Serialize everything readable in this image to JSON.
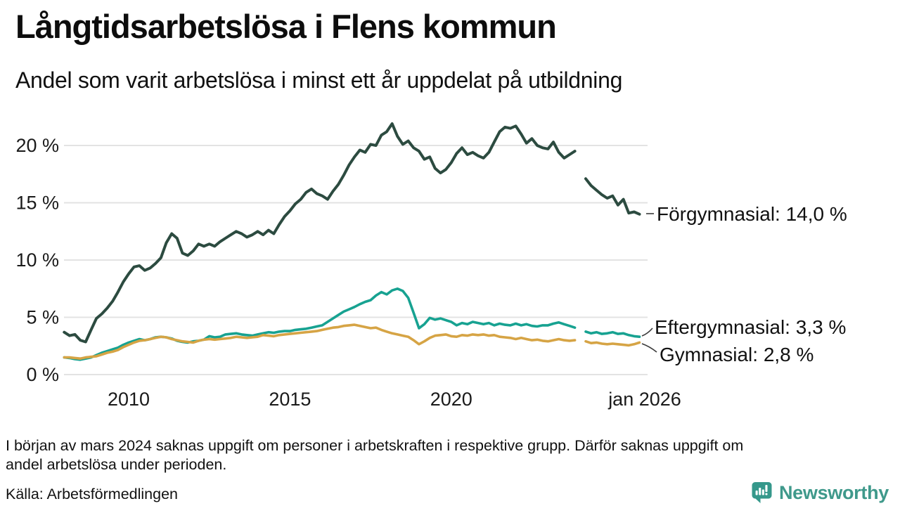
{
  "header": {
    "title": "Långtidsarbetslösa i Flens kommun",
    "subtitle": "Andel som varit arbetslösa i minst ett år uppdelat på utbildning"
  },
  "chart_data": {
    "type": "line",
    "title": "Långtidsarbetslösa i Flens kommun",
    "subtitle": "Andel som varit arbetslösa i minst ett år uppdelat på utbildning",
    "unit": "%",
    "grid": "horizontal-only",
    "legend_position": "right-end-labels",
    "x_axis": {
      "range_years": [
        2008.0,
        2026.2
      ],
      "ticks": [
        {
          "year": 2010,
          "label": "2010"
        },
        {
          "year": 2015,
          "label": "2015"
        },
        {
          "year": 2020,
          "label": "2020"
        },
        {
          "year": 2026,
          "label": "jan 2026"
        }
      ]
    },
    "y_axis": {
      "range": [
        0,
        22.5
      ],
      "ticks": [
        {
          "value": 0,
          "label": "0 %"
        },
        {
          "value": 5,
          "label": "5 %"
        },
        {
          "value": 10,
          "label": "10 %"
        },
        {
          "value": 15,
          "label": "15 %"
        },
        {
          "value": 20,
          "label": "20 %"
        }
      ]
    },
    "gap_period": "ca nov 2023 – feb 2024 (data saknas)",
    "series": [
      {
        "name": "Förgymnasial",
        "color": "#2c4b40",
        "end_value": 14.0,
        "end_label": "Förgymnasial: 14,0 %",
        "segments": [
          {
            "start": 2008.0,
            "step": 0.16667,
            "values": [
              3.7,
              3.4,
              3.5,
              3.0,
              2.85,
              3.9,
              4.9,
              5.3,
              5.8,
              6.4,
              7.2,
              8.1,
              8.8,
              9.4,
              9.5,
              9.1,
              9.3,
              9.7,
              10.2,
              11.5,
              12.3,
              11.9,
              10.6,
              10.4,
              10.8,
              11.4,
              11.2,
              11.4,
              11.2,
              11.6,
              11.9,
              12.2,
              12.5,
              12.3,
              12.0,
              12.2,
              12.5,
              12.2,
              12.6,
              12.3,
              13.1,
              13.8,
              14.3,
              14.9,
              15.3,
              15.9,
              16.2,
              15.8,
              15.6,
              15.3,
              16.0,
              16.6,
              17.4,
              18.3,
              19.0,
              19.6,
              19.4,
              20.1,
              20.0,
              20.9,
              21.2,
              21.9,
              20.8,
              20.1,
              20.4,
              19.8,
              19.5,
              18.8,
              19.0,
              18.0,
              17.6,
              17.9,
              18.5,
              19.3,
              19.8,
              19.2,
              19.4,
              19.1,
              18.9,
              19.4,
              20.3,
              21.2,
              21.6,
              21.5,
              21.7,
              21.0,
              20.2,
              20.6,
              20.0,
              19.8,
              19.7,
              20.3,
              19.4,
              18.9,
              19.2,
              19.5
            ]
          },
          {
            "start": 2024.17,
            "step": 0.16667,
            "values": [
              17.1,
              16.5,
              16.1,
              15.7,
              15.4,
              15.6,
              14.8,
              15.3,
              14.1,
              14.2,
              14.0
            ]
          }
        ]
      },
      {
        "name": "Eftergymnasial",
        "color": "#17a291",
        "end_value": 3.3,
        "end_label": "Eftergymnasial:  3,3 %",
        "segments": [
          {
            "start": 2008.0,
            "step": 0.16667,
            "values": [
              1.5,
              1.45,
              1.35,
              1.3,
              1.4,
              1.5,
              1.7,
              1.9,
              2.05,
              2.2,
              2.35,
              2.6,
              2.8,
              2.95,
              3.1,
              3.0,
              3.1,
              3.25,
              3.3,
              3.25,
              3.15,
              2.95,
              2.85,
              2.8,
              2.9,
              2.95,
              3.05,
              3.35,
              3.25,
              3.3,
              3.5,
              3.55,
              3.6,
              3.5,
              3.45,
              3.4,
              3.5,
              3.6,
              3.7,
              3.65,
              3.75,
              3.8,
              3.8,
              3.9,
              3.95,
              4.0,
              4.1,
              4.2,
              4.3,
              4.6,
              4.9,
              5.2,
              5.5,
              5.7,
              5.9,
              6.15,
              6.35,
              6.5,
              6.9,
              7.2,
              7.0,
              7.35,
              7.5,
              7.3,
              6.7,
              5.4,
              4.05,
              4.4,
              4.95,
              4.8,
              4.9,
              4.75,
              4.6,
              4.3,
              4.5,
              4.4,
              4.6,
              4.5,
              4.4,
              4.5,
              4.3,
              4.45,
              4.35,
              4.3,
              4.45,
              4.3,
              4.4,
              4.25,
              4.2,
              4.3,
              4.3,
              4.45,
              4.55,
              4.4,
              4.25,
              4.1
            ]
          },
          {
            "start": 2024.17,
            "step": 0.16667,
            "values": [
              3.75,
              3.6,
              3.7,
              3.55,
              3.6,
              3.7,
              3.55,
              3.6,
              3.45,
              3.35,
              3.3
            ]
          }
        ]
      },
      {
        "name": "Gymnasial",
        "color": "#d6a445",
        "end_value": 2.8,
        "end_label": "Gymnasial:  2,8 %",
        "segments": [
          {
            "start": 2008.0,
            "step": 0.16667,
            "values": [
              1.5,
              1.5,
              1.45,
              1.4,
              1.5,
              1.55,
              1.6,
              1.75,
              1.9,
              2.0,
              2.15,
              2.4,
              2.6,
              2.8,
              2.95,
              3.0,
              3.1,
              3.2,
              3.3,
              3.25,
              3.1,
              3.0,
              2.9,
              2.85,
              2.8,
              2.95,
              3.05,
              3.1,
              3.05,
              3.1,
              3.15,
              3.2,
              3.3,
              3.25,
              3.2,
              3.25,
              3.3,
              3.45,
              3.4,
              3.35,
              3.45,
              3.5,
              3.55,
              3.6,
              3.65,
              3.7,
              3.75,
              3.8,
              3.9,
              4.0,
              4.1,
              4.15,
              4.25,
              4.3,
              4.35,
              4.25,
              4.15,
              4.05,
              4.1,
              3.9,
              3.75,
              3.6,
              3.5,
              3.4,
              3.3,
              3.0,
              2.65,
              2.9,
              3.2,
              3.4,
              3.45,
              3.5,
              3.35,
              3.3,
              3.45,
              3.4,
              3.5,
              3.45,
              3.5,
              3.4,
              3.45,
              3.3,
              3.25,
              3.2,
              3.1,
              3.2,
              3.1,
              3.0,
              3.05,
              2.95,
              2.9,
              3.0,
              3.1,
              3.0,
              2.95,
              3.0
            ]
          },
          {
            "start": 2024.17,
            "step": 0.16667,
            "values": [
              2.9,
              2.75,
              2.8,
              2.7,
              2.65,
              2.7,
              2.65,
              2.6,
              2.55,
              2.65,
              2.8
            ]
          }
        ]
      }
    ]
  },
  "footer": {
    "note_lines": [
      "I början av mars 2024 saknas uppgift om personer i arbetskraften i respektive grupp. Därför saknas uppgift om",
      "andel arbetslösa under perioden."
    ],
    "source": "Källa: Arbetsförmedlingen",
    "brand": "Newsworthy",
    "brand_color": "#3f998b"
  }
}
